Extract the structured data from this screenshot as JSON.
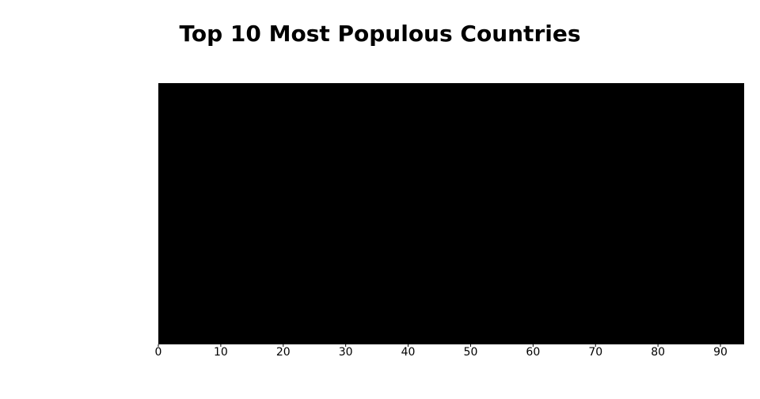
{
  "chart_data": {
    "type": "bar",
    "title": "Top 10 Most Populous Countries",
    "xlim": [
      0,
      93.8
    ],
    "xticks": [
      0,
      10,
      20,
      30,
      40,
      50,
      60,
      70,
      80,
      90
    ]
  }
}
